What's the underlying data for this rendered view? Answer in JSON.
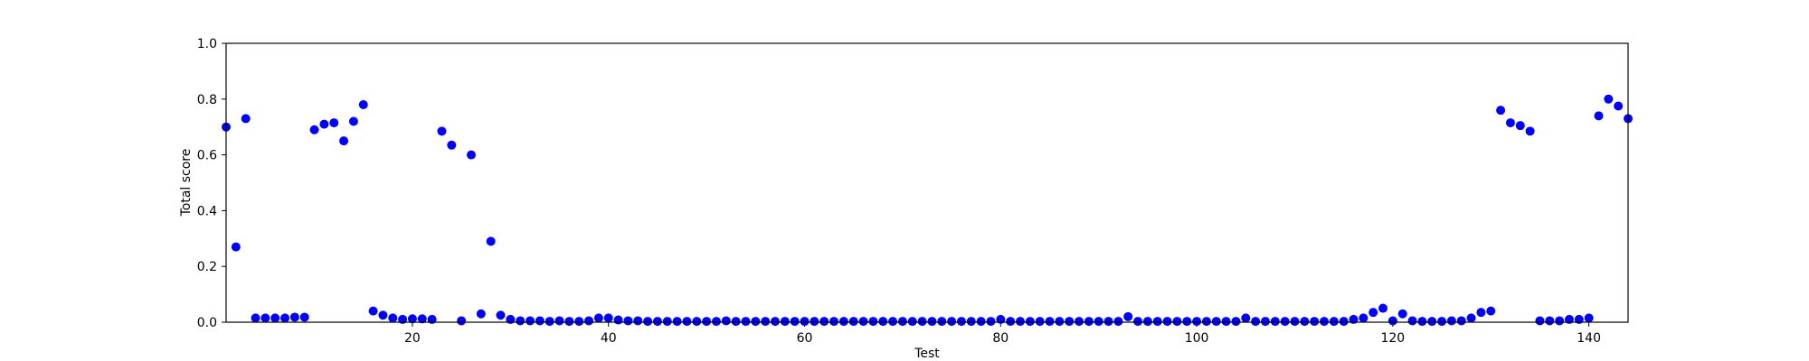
{
  "chart_data": {
    "type": "scatter",
    "title": "",
    "xlabel": "Test",
    "ylabel": "Total score",
    "xlim": [
      1,
      144
    ],
    "ylim": [
      0.0,
      1.0
    ],
    "x_ticks": [
      20,
      40,
      60,
      80,
      100,
      120,
      140
    ],
    "x_tick_labels": [
      "20",
      "40",
      "60",
      "80",
      "100",
      "120",
      "140"
    ],
    "y_ticks": [
      0.0,
      0.2,
      0.4,
      0.6,
      0.8,
      1.0
    ],
    "y_tick_labels": [
      "0.0",
      "0.2",
      "0.4",
      "0.6",
      "0.8",
      "1.0"
    ],
    "grid": false,
    "marker_color": "#0000ff",
    "series": [
      {
        "x": [
          1,
          2,
          3,
          4,
          5,
          6,
          7,
          8,
          9,
          10,
          11,
          12,
          13,
          14,
          15,
          16,
          17,
          18,
          19,
          20,
          21,
          22,
          23,
          24,
          25,
          26,
          27,
          28,
          29,
          30,
          31,
          32,
          33,
          34,
          35,
          36,
          37,
          38,
          39,
          40,
          41,
          42,
          43,
          44,
          45,
          46,
          47,
          48,
          49,
          50,
          51,
          52,
          53,
          54,
          55,
          56,
          57,
          58,
          59,
          60,
          61,
          62,
          63,
          64,
          65,
          66,
          67,
          68,
          69,
          70,
          71,
          72,
          73,
          74,
          75,
          76,
          77,
          78,
          79,
          80,
          81,
          82,
          83,
          84,
          85,
          86,
          87,
          88,
          89,
          90,
          91,
          92,
          93,
          94,
          95,
          96,
          97,
          98,
          99,
          100,
          101,
          102,
          103,
          104,
          105,
          106,
          107,
          108,
          109,
          110,
          111,
          112,
          113,
          114,
          115,
          116,
          117,
          118,
          119,
          120,
          121,
          122,
          123,
          124,
          125,
          126,
          127,
          128,
          129,
          130,
          131,
          132,
          133,
          134,
          135,
          136,
          137,
          138,
          139,
          140,
          141,
          142,
          143,
          144
        ],
        "y": [
          0.7,
          0.27,
          0.73,
          0.015,
          0.015,
          0.015,
          0.015,
          0.018,
          0.018,
          0.69,
          0.71,
          0.715,
          0.65,
          0.72,
          0.78,
          0.04,
          0.025,
          0.015,
          0.01,
          0.012,
          0.012,
          0.01,
          0.685,
          0.635,
          0.005,
          0.6,
          0.03,
          0.29,
          0.025,
          0.01,
          0.005,
          0.005,
          0.005,
          0.003,
          0.005,
          0.003,
          0.003,
          0.005,
          0.015,
          0.015,
          0.008,
          0.005,
          0.005,
          0.003,
          0.003,
          0.003,
          0.003,
          0.003,
          0.003,
          0.003,
          0.003,
          0.005,
          0.003,
          0.003,
          0.003,
          0.003,
          0.003,
          0.003,
          0.003,
          0.003,
          0.003,
          0.003,
          0.003,
          0.003,
          0.003,
          0.003,
          0.003,
          0.003,
          0.003,
          0.003,
          0.003,
          0.003,
          0.003,
          0.003,
          0.003,
          0.003,
          0.003,
          0.003,
          0.003,
          0.01,
          0.003,
          0.003,
          0.003,
          0.003,
          0.003,
          0.003,
          0.003,
          0.003,
          0.003,
          0.003,
          0.003,
          0.003,
          0.02,
          0.003,
          0.003,
          0.003,
          0.003,
          0.003,
          0.003,
          0.003,
          0.003,
          0.003,
          0.003,
          0.003,
          0.015,
          0.003,
          0.003,
          0.003,
          0.003,
          0.003,
          0.003,
          0.003,
          0.003,
          0.003,
          0.003,
          0.01,
          0.015,
          0.035,
          0.05,
          0.005,
          0.03,
          0.005,
          0.003,
          0.003,
          0.003,
          0.005,
          0.005,
          0.015,
          0.035,
          0.04,
          0.76,
          0.715,
          0.705,
          0.685,
          0.005,
          0.005,
          0.005,
          0.01,
          0.01,
          0.015,
          0.74,
          0.8,
          0.775,
          0.73
        ]
      }
    ]
  }
}
